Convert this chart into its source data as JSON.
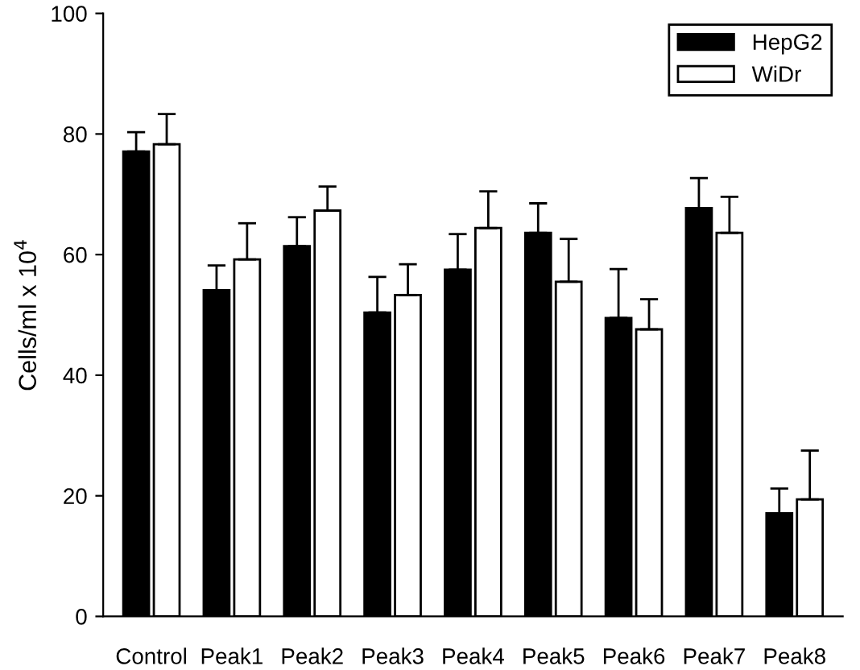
{
  "chart_data": {
    "type": "bar",
    "ylabel": "Cells/ml x 10$^{4}$",
    "categories": [
      "Control",
      "Peak1",
      "Peak2",
      "Peak3",
      "Peak4",
      "Peak5",
      "Peak6",
      "Peak7",
      "Peak8"
    ],
    "series": [
      {
        "name": "HepG2",
        "color": "#000000",
        "values": [
          77.1,
          54.1,
          61.4,
          50.4,
          57.5,
          63.6,
          49.5,
          67.7,
          17.1
        ],
        "errors": [
          [
            77.1,
            80.3
          ],
          [
            54.1,
            58.2
          ],
          [
            61.4,
            66.2
          ],
          [
            50.4,
            56.3
          ],
          [
            57.5,
            63.4
          ],
          [
            63.6,
            68.5
          ],
          [
            49.5,
            57.6
          ],
          [
            67.7,
            72.7
          ],
          [
            17.1,
            21.2
          ]
        ]
      },
      {
        "name": "WiDr",
        "color": "#ffffff",
        "values": [
          78.3,
          59.2,
          67.3,
          53.3,
          64.4,
          55.5,
          47.6,
          63.6,
          19.4
        ],
        "errors": [
          [
            78.3,
            83.3
          ],
          [
            59.2,
            65.2
          ],
          [
            67.3,
            71.3
          ],
          [
            53.3,
            58.4
          ],
          [
            64.4,
            70.5
          ],
          [
            55.5,
            62.6
          ],
          [
            47.6,
            52.6
          ],
          [
            63.6,
            69.6
          ],
          [
            19.4,
            27.5
          ]
        ]
      }
    ],
    "ylim": [
      0,
      100
    ],
    "yticks": [
      0,
      20,
      40,
      60,
      80,
      100
    ],
    "grid": false,
    "legend": "top right"
  }
}
